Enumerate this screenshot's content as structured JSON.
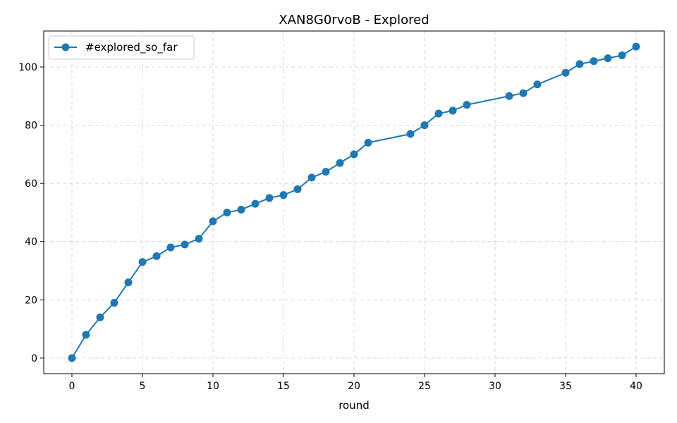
{
  "chart_data": {
    "type": "line",
    "title": "XAN8G0rvoB - Explored",
    "xlabel": "round",
    "ylabel": "",
    "xlim": [
      -2,
      42
    ],
    "ylim": [
      -5.35,
      112.35
    ],
    "xticks": [
      0,
      5,
      10,
      15,
      20,
      25,
      30,
      35,
      40
    ],
    "yticks": [
      0,
      20,
      40,
      60,
      80,
      100
    ],
    "grid": true,
    "legend_position": "top-left",
    "series": [
      {
        "name": "#explored_so_far",
        "color": "#1f77b4",
        "marker": "circle",
        "points": [
          [
            0,
            0
          ],
          [
            1,
            8
          ],
          [
            2,
            14
          ],
          [
            3,
            19
          ],
          [
            4,
            26
          ],
          [
            5,
            33
          ],
          [
            6,
            35
          ],
          [
            7,
            38
          ],
          [
            8,
            39
          ],
          [
            9,
            41
          ],
          [
            10,
            47
          ],
          [
            11,
            50
          ],
          [
            12,
            51
          ],
          [
            13,
            53
          ],
          [
            14,
            55
          ],
          [
            15,
            56
          ],
          [
            16,
            58
          ],
          [
            17,
            62
          ],
          [
            18,
            64
          ],
          [
            19,
            67
          ],
          [
            20,
            70
          ],
          [
            21,
            74
          ],
          [
            24,
            77
          ],
          [
            25,
            80
          ],
          [
            26,
            84
          ],
          [
            27,
            85
          ],
          [
            28,
            87
          ],
          [
            31,
            90
          ],
          [
            32,
            91
          ],
          [
            33,
            94
          ],
          [
            35,
            98
          ],
          [
            36,
            101
          ],
          [
            37,
            102
          ],
          [
            38,
            103
          ],
          [
            39,
            104
          ],
          [
            40,
            107
          ]
        ]
      }
    ]
  }
}
